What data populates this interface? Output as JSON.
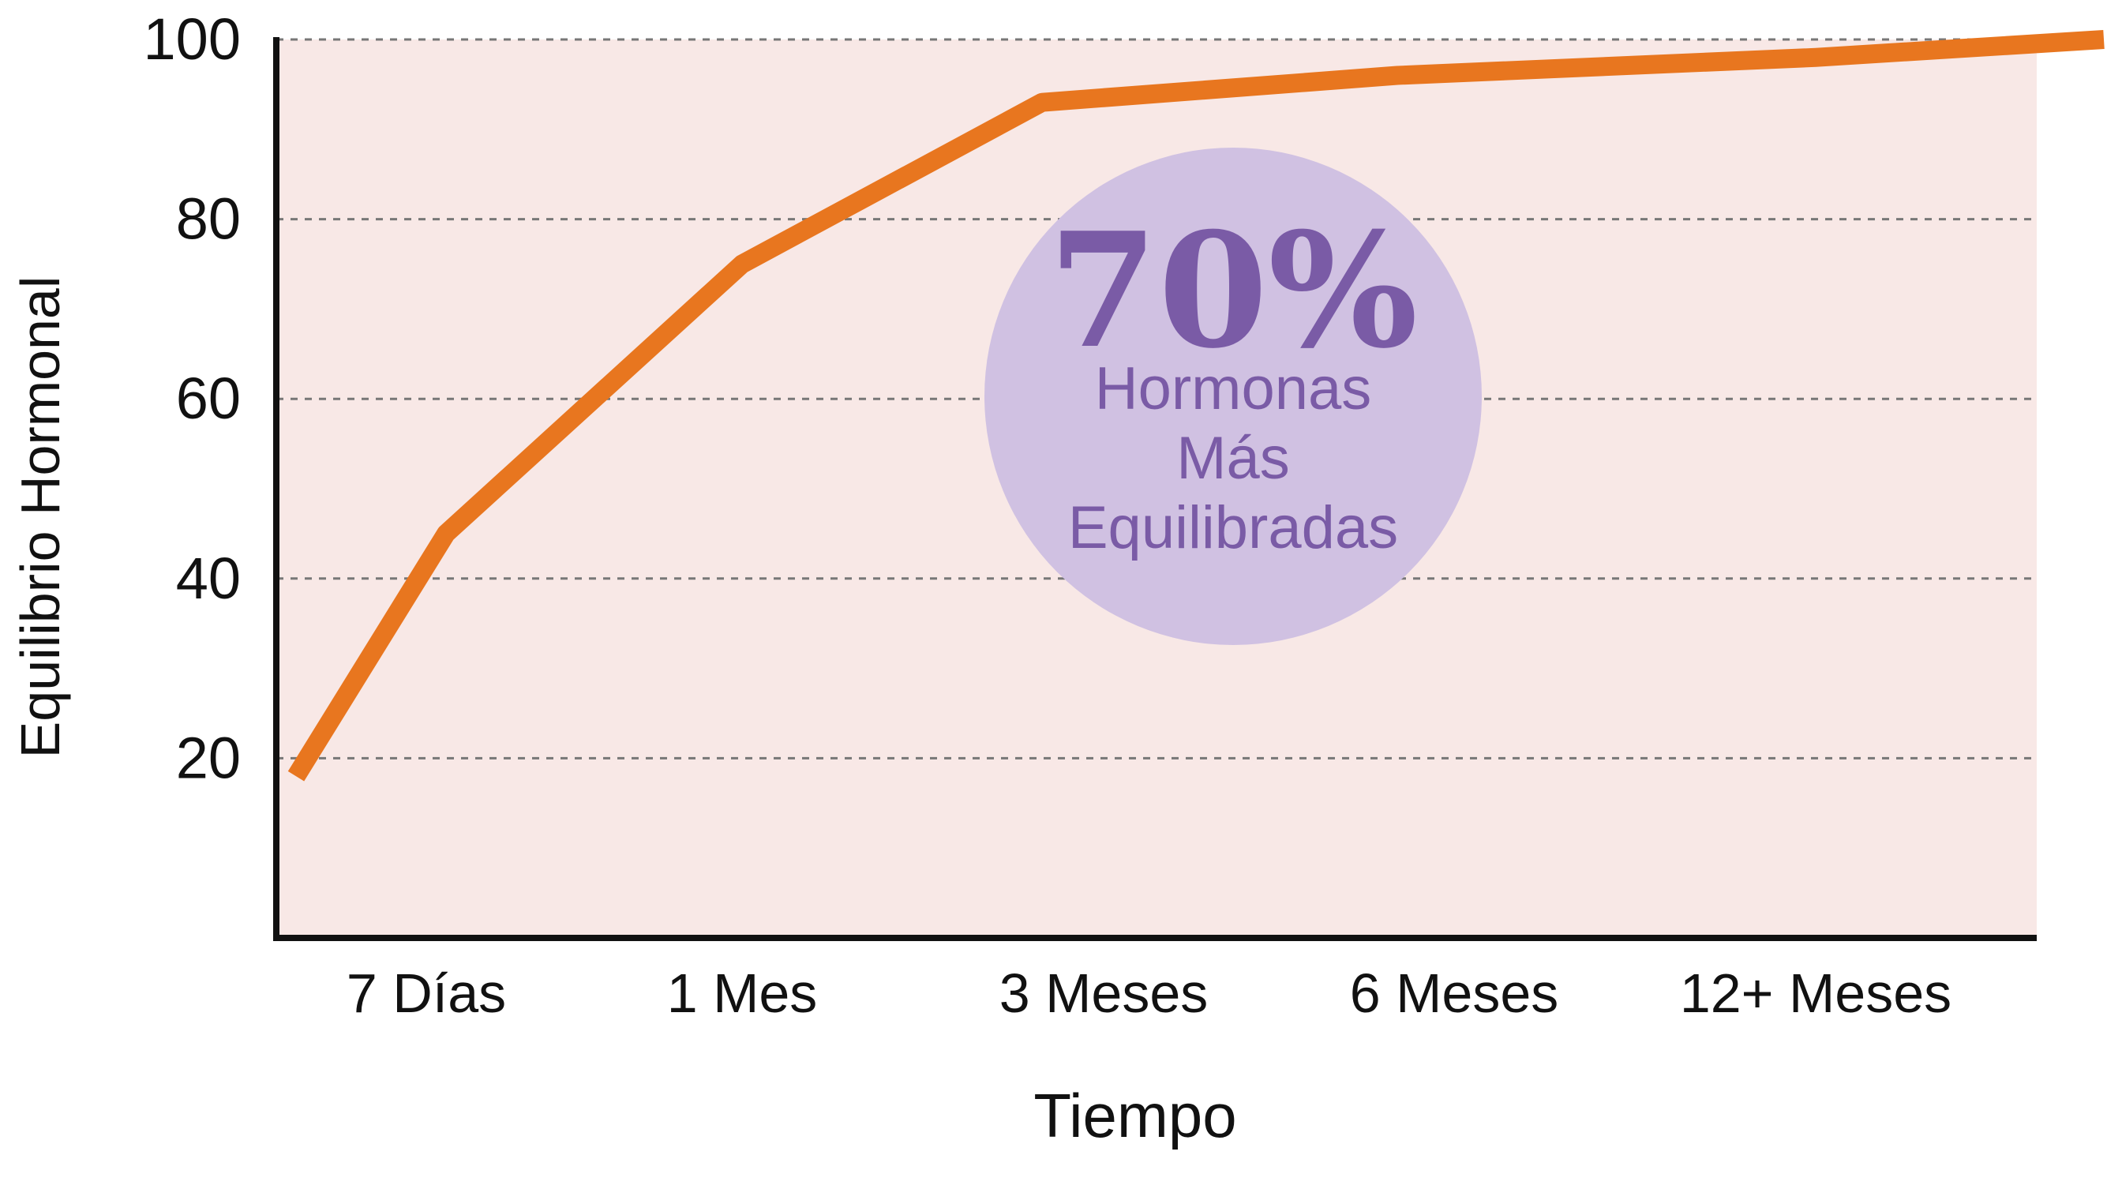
{
  "chart_data": {
    "type": "line",
    "title": "",
    "xlabel": "Tiempo",
    "ylabel": "Equilibrio Hormonal",
    "categories": [
      "7 Días",
      "1 Mes",
      "3 Meses",
      "6 Meses",
      "12+ Meses"
    ],
    "y_ticks": [
      20,
      40,
      60,
      80,
      100
    ],
    "ylim": [
      0,
      100
    ],
    "grid": true,
    "series": [
      {
        "points": [
          {
            "x": "",
            "y": 18
          },
          {
            "x": "7 Días",
            "y": 45
          },
          {
            "x": "1 Mes",
            "y": 75
          },
          {
            "x": "3 Meses",
            "y": 93
          },
          {
            "x": "6 Meses",
            "y": 96
          },
          {
            "x": "12+ Meses",
            "y": 98
          },
          {
            "x": "",
            "y": 100
          }
        ]
      }
    ],
    "annotation": {
      "value": "70%",
      "lines": [
        "Hormonas",
        "Más",
        "Equilibradas"
      ]
    },
    "colors": {
      "line": "#E8761F",
      "plot_bg": "#F8E8E6",
      "bubble": "#D0C1E2",
      "annotation_text": "#7A5BA6",
      "axis": "#111111",
      "grid": "#777777"
    }
  }
}
